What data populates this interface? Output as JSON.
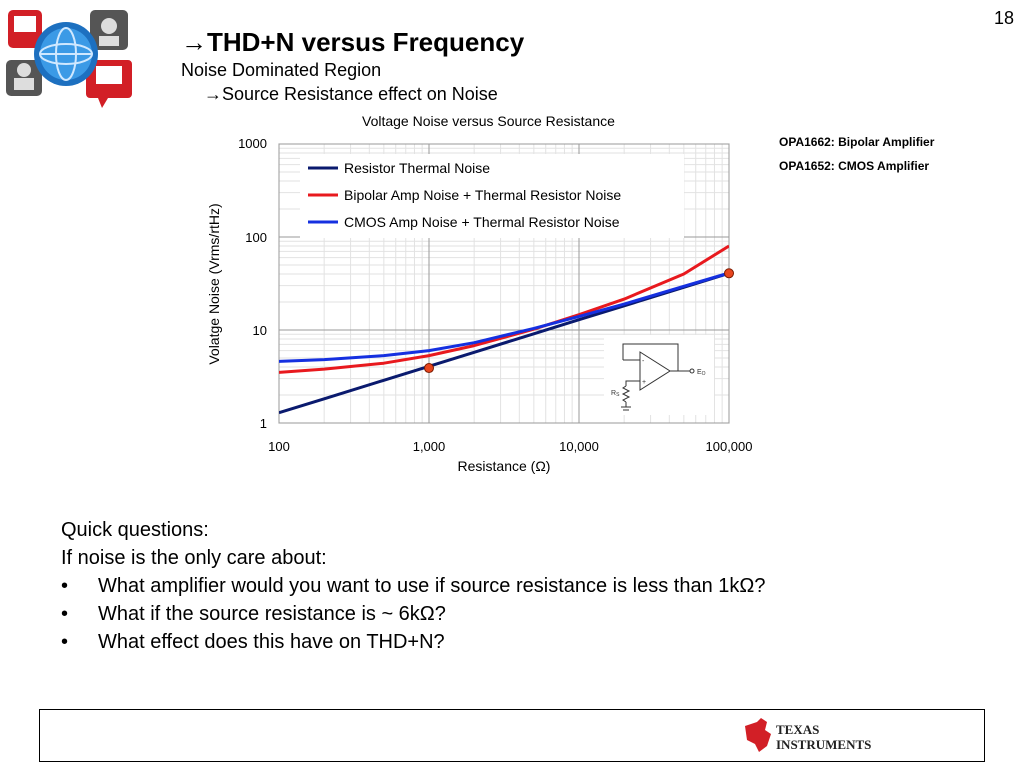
{
  "slide": {
    "number": "18",
    "title": "→THD+N versus Frequency",
    "subtitle": "Noise Dominated Region",
    "subsubtitle": "→Source Resistance effect on Noise",
    "notes": [
      "OPA1662: Bipolar Amplifier",
      "OPA1652: CMOS Amplifier"
    ],
    "questions_intro": [
      "Quick questions:",
      "If noise is the only care about:"
    ],
    "bullet_symbol": "•",
    "questions": [
      "What amplifier would you want to use if source resistance is less than 1kΩ?",
      "What if the source resistance is ~ 6kΩ?",
      "What effect does this have on THD+N?"
    ],
    "footer": {
      "logo_line1": "TEXAS",
      "logo_line2": "INSTRUMENTS"
    },
    "inset_schematic": {
      "source_label": "R",
      "source_sub": "S",
      "output_label": "E",
      "output_sub": "O"
    }
  },
  "chart_data": {
    "type": "line",
    "title": "Voltage Noise versus Source Resistance",
    "xlabel": "Resistance (Ω)",
    "ylabel": "Volatge Noise (Vrms/rtHz)",
    "x_scale": "log",
    "y_scale": "log",
    "xlim": [
      100,
      100000
    ],
    "ylim": [
      1,
      1000
    ],
    "x_ticks": [
      100,
      1000,
      10000,
      100000
    ],
    "x_tick_labels": [
      "100",
      "1,000",
      "10,000",
      "100,000"
    ],
    "y_ticks": [
      1,
      10,
      100,
      1000
    ],
    "y_tick_labels": [
      "1",
      "10",
      "100",
      "1000"
    ],
    "grid": true,
    "legend_position": "top-left",
    "series": [
      {
        "name": "Resistor Thermal Noise",
        "color": "#0a1a6e",
        "x": [
          100,
          200,
          500,
          1000,
          2000,
          5000,
          10000,
          20000,
          50000,
          100000
        ],
        "y": [
          1.29,
          1.82,
          2.88,
          4.07,
          5.76,
          9.1,
          12.9,
          18.2,
          28.8,
          40.7
        ]
      },
      {
        "name": "Bipolar Amp Noise + Thermal Resistor Noise",
        "color": "#e8191e",
        "x": [
          100,
          200,
          500,
          1000,
          2000,
          5000,
          10000,
          20000,
          50000,
          100000
        ],
        "y": [
          3.5,
          3.8,
          4.4,
          5.3,
          6.8,
          10.2,
          14.6,
          21.5,
          40.0,
          80.0
        ]
      },
      {
        "name": "CMOS Amp Noise + Thermal Resistor Noise",
        "color": "#1530e0",
        "x": [
          100,
          200,
          500,
          1000,
          2000,
          5000,
          10000,
          20000,
          50000,
          100000
        ],
        "y": [
          4.6,
          4.8,
          5.3,
          6.0,
          7.3,
          10.4,
          14.0,
          19.0,
          29.5,
          41.0
        ]
      }
    ],
    "markers": [
      {
        "x": 1000,
        "y": 3.9,
        "color": "#e8451e"
      },
      {
        "x": 100000,
        "y": 40.7,
        "color": "#e8451e"
      }
    ]
  }
}
